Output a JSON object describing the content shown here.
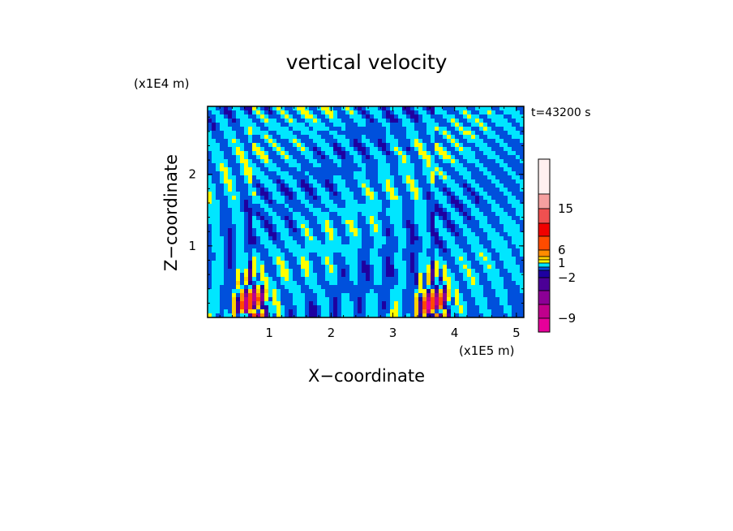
{
  "chart_data": {
    "type": "heatmap",
    "title": "vertical velocity",
    "time_label": "t=43200 s",
    "xlabel": "X−coordinate",
    "ylabel": "Z−coordinate",
    "x_unit": "(x1E5 m)",
    "y_unit": "(x1E4 m)",
    "xlim": [
      0,
      5.12
    ],
    "ylim": [
      0,
      2.95
    ],
    "x_ticks": [
      1,
      2,
      3,
      4,
      5
    ],
    "y_ticks": [
      1,
      2
    ],
    "colorbar": {
      "levels": [
        -12,
        -9,
        -6,
        -4,
        -2,
        -1,
        0,
        1,
        2,
        4,
        6,
        9,
        12,
        15,
        18,
        22
      ],
      "colors": [
        "#e6009a",
        "#c0008c",
        "#8c0096",
        "#4b0096",
        "#1e00a0",
        "#0050dc",
        "#00e6ff",
        "#ffff00",
        "#ffd200",
        "#ff8c00",
        "#ff4b00",
        "#f00000",
        "#f05050",
        "#f5a0a0",
        "#fff0f0"
      ],
      "tick_labels": [
        "15",
        "6",
        "1",
        "−2",
        "−9"
      ],
      "tick_values": [
        15,
        6,
        1,
        -2,
        -9
      ]
    }
  }
}
